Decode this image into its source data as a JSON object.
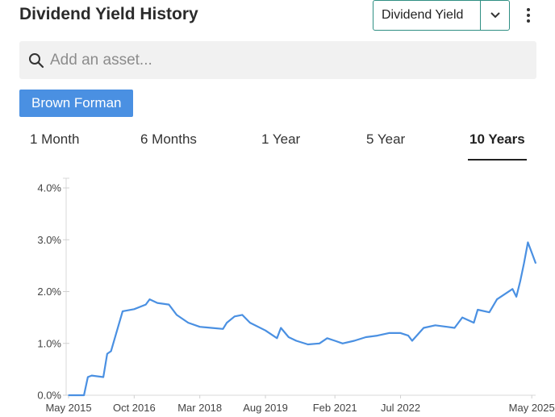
{
  "header": {
    "title": "Dividend Yield History",
    "metric_select": "Dividend Yield"
  },
  "search": {
    "placeholder": "Add an asset...",
    "value": ""
  },
  "asset_chip": {
    "label": "Brown Forman"
  },
  "tabs": [
    {
      "label": "1 Month"
    },
    {
      "label": "6 Months"
    },
    {
      "label": "1 Year"
    },
    {
      "label": "5 Year"
    },
    {
      "label": "10 Years",
      "active": true
    }
  ],
  "colors": {
    "line": "#4a90e2",
    "accent": "#2f8f83",
    "chip": "#4a90e2"
  },
  "icons": {
    "search": "search-icon",
    "caret": "chevron-down-icon",
    "more": "more-vertical-icon"
  },
  "chart_data": {
    "type": "line",
    "title": "",
    "xlabel": "",
    "ylabel": "",
    "ylim": [
      0,
      4.0
    ],
    "xlim": [
      "2015-05",
      "2025-06"
    ],
    "grid": false,
    "legend": "none",
    "y_ticks": [
      "0.0%",
      "1.0%",
      "2.0%",
      "3.0%",
      "4.0%"
    ],
    "y_tick_values": [
      0,
      1,
      2,
      3,
      4
    ],
    "x_ticks": [
      "May 2015",
      "Oct 2016",
      "Mar 2018",
      "Aug 2019",
      "Feb 2021",
      "Jul 2022",
      "May 2025"
    ],
    "x_tick_dates": [
      "2015-05",
      "2016-10",
      "2018-03",
      "2019-08",
      "2021-02",
      "2022-07",
      "2025-05"
    ],
    "series": [
      {
        "x": [
          "2015-05",
          "2015-09",
          "2015-10",
          "2015-11",
          "2016-02",
          "2016-03",
          "2016-04",
          "2016-07",
          "2016-10",
          "2017-01",
          "2017-02",
          "2017-04",
          "2017-07",
          "2017-09",
          "2017-12",
          "2018-03",
          "2018-06",
          "2018-09",
          "2018-10",
          "2018-12",
          "2019-02",
          "2019-04",
          "2019-08",
          "2019-11",
          "2019-12",
          "2020-02",
          "2020-04",
          "2020-07",
          "2020-10",
          "2020-12",
          "2021-02",
          "2021-04",
          "2021-07",
          "2021-10",
          "2022-01",
          "2022-04",
          "2022-07",
          "2022-09",
          "2022-10",
          "2023-01",
          "2023-04",
          "2023-07",
          "2023-09",
          "2023-11",
          "2024-02",
          "2024-03",
          "2024-06",
          "2024-08",
          "2024-10",
          "2024-12",
          "2025-01",
          "2025-02",
          "2025-03",
          "2025-04",
          "2025-05",
          "2025-06"
        ],
        "values": [
          0.0,
          0.0,
          0.35,
          0.38,
          0.35,
          0.8,
          0.85,
          1.62,
          1.66,
          1.75,
          1.85,
          1.78,
          1.75,
          1.55,
          1.4,
          1.32,
          1.3,
          1.28,
          1.4,
          1.52,
          1.55,
          1.4,
          1.25,
          1.1,
          1.3,
          1.12,
          1.05,
          0.98,
          1.0,
          1.1,
          1.05,
          1.0,
          1.05,
          1.12,
          1.15,
          1.2,
          1.2,
          1.15,
          1.05,
          1.3,
          1.35,
          1.32,
          1.3,
          1.5,
          1.4,
          1.65,
          1.6,
          1.85,
          1.95,
          2.05,
          1.9,
          2.2,
          2.55,
          2.95,
          2.75,
          2.55
        ]
      }
    ]
  }
}
